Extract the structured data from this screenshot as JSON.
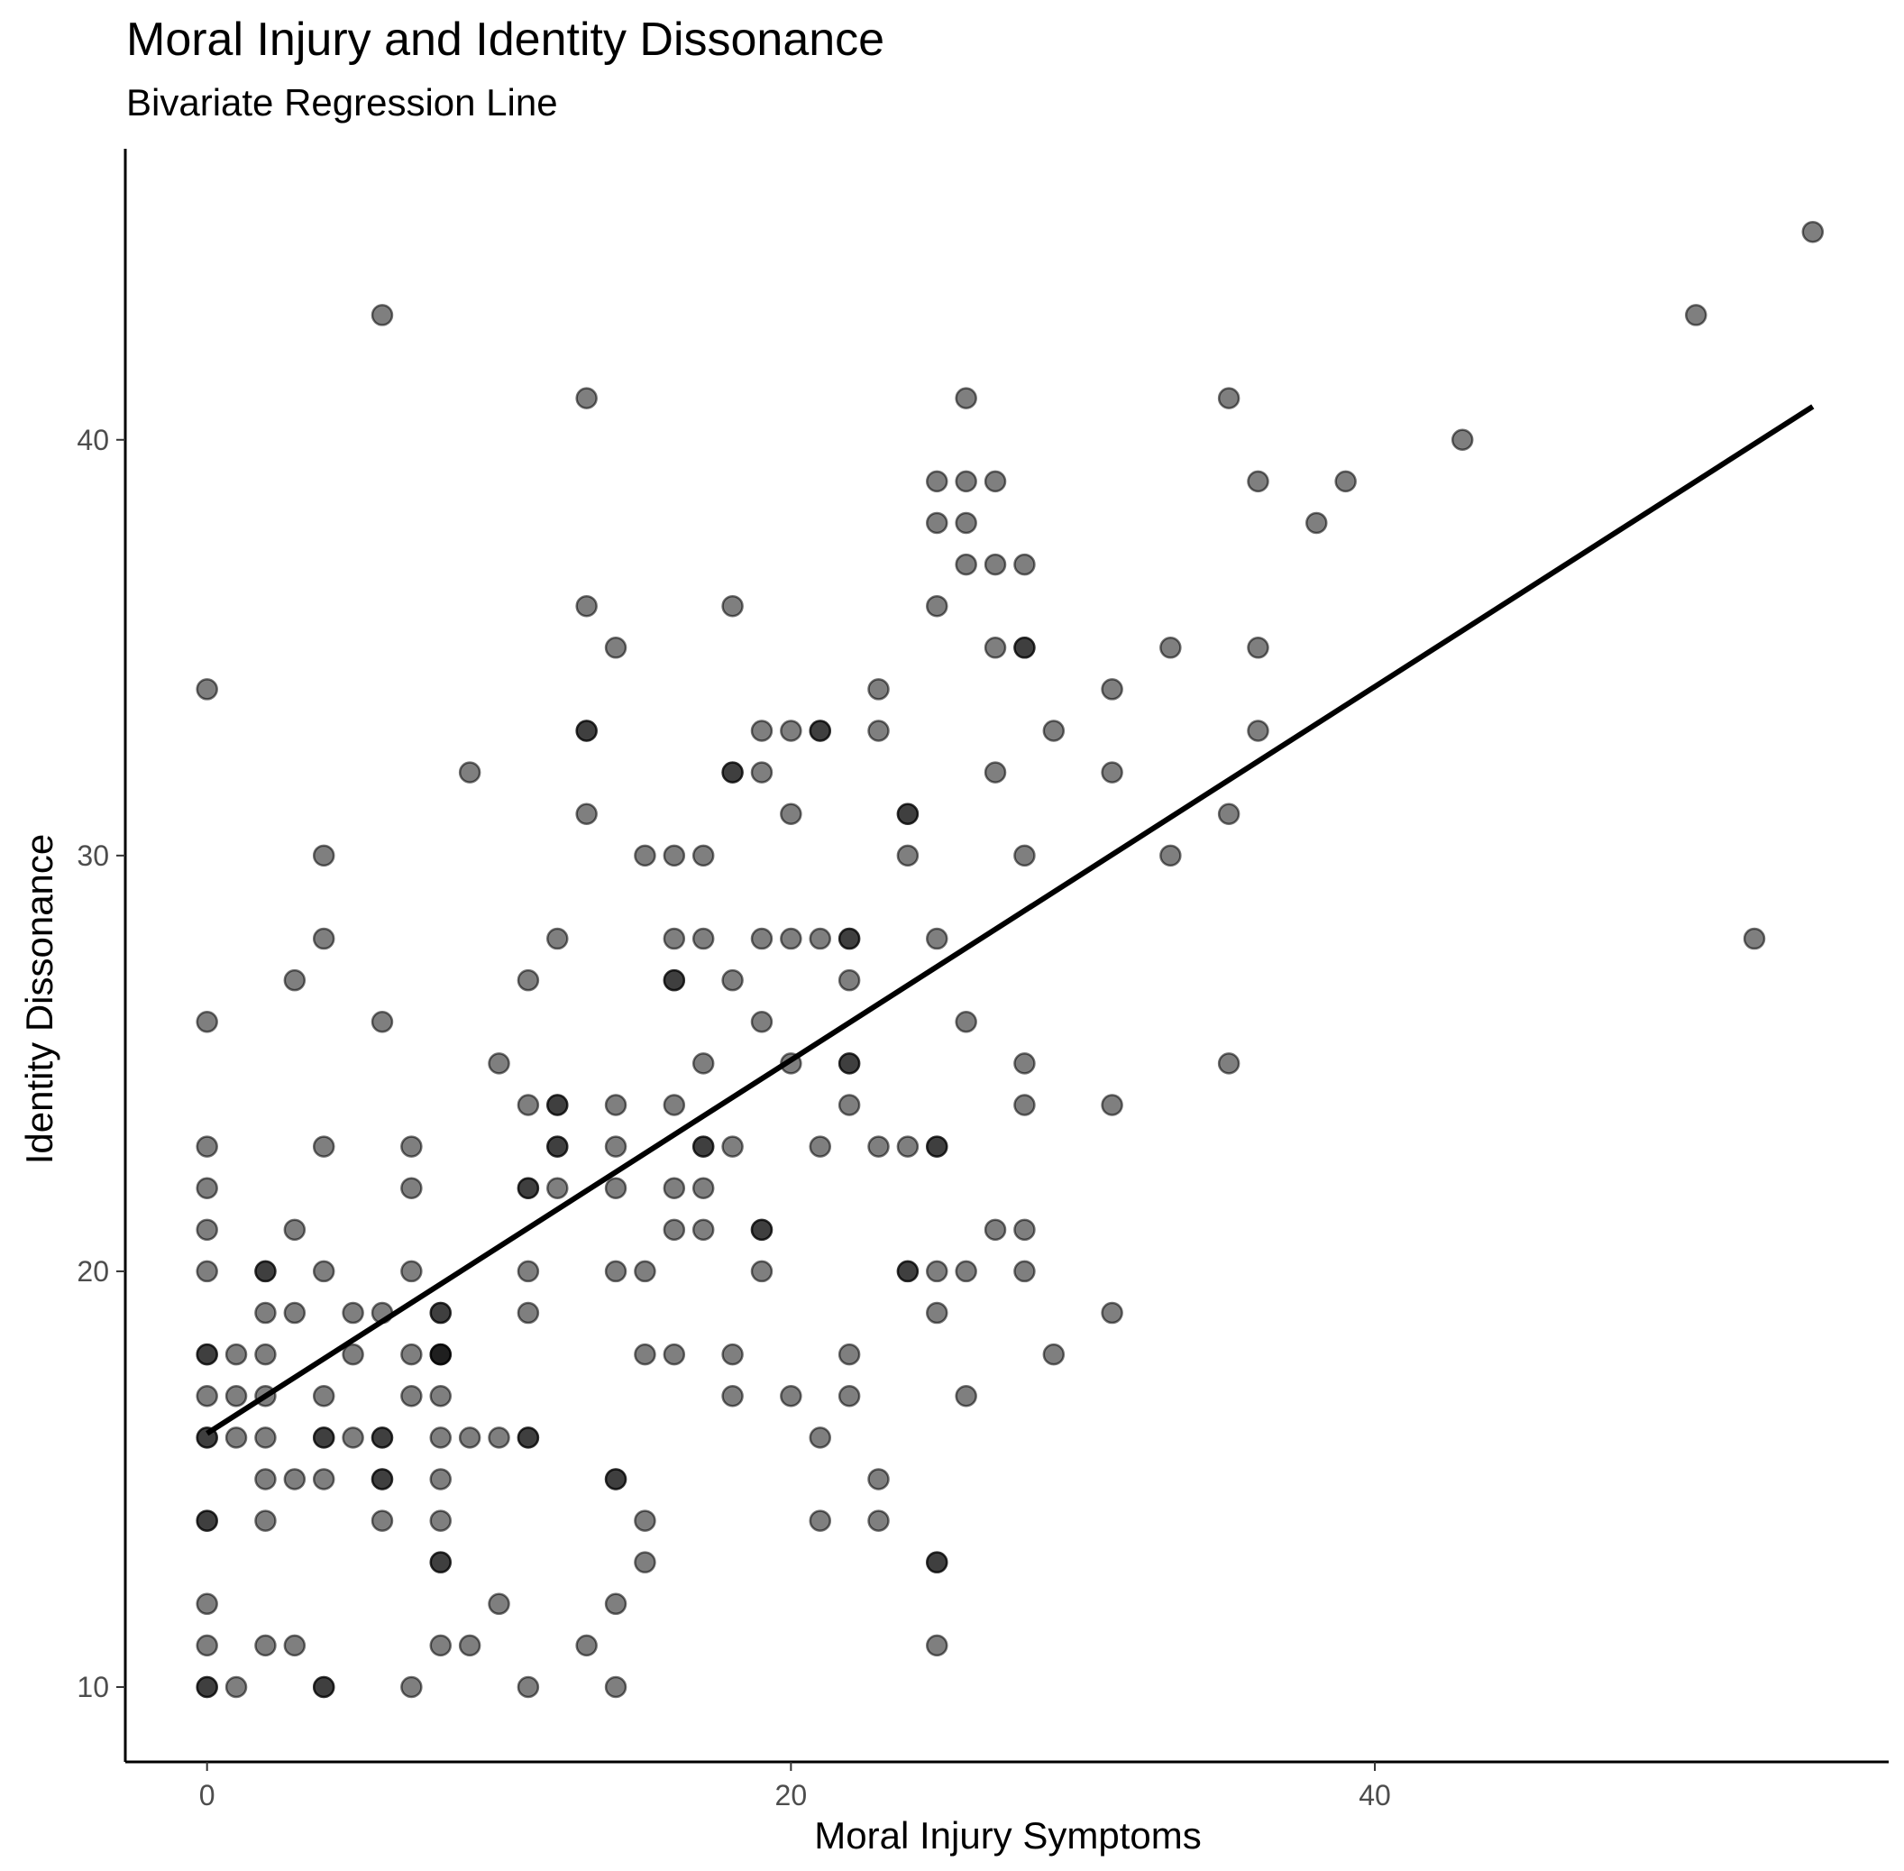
{
  "chart_data": {
    "type": "scatter",
    "title": "Moral Injury and Identity Dissonance",
    "subtitle": "Bivariate Regression Line",
    "xlabel": "Moral Injury Symptoms",
    "ylabel": "Identity Dissonance",
    "xlim": [
      -2.8,
      57.6
    ],
    "ylim": [
      8.2,
      47.0
    ],
    "xticks": [
      0,
      20,
      40
    ],
    "yticks": [
      10,
      20,
      30,
      40
    ],
    "grid": false,
    "point_color": "#000000",
    "point_opacity": 0.5,
    "line_color": "#000000",
    "regression_line": {
      "x": [
        0,
        55
      ],
      "y": [
        16.1,
        40.8
      ]
    },
    "points": [
      [
        0,
        34
      ],
      [
        0,
        26
      ],
      [
        0,
        23
      ],
      [
        0,
        22
      ],
      [
        0,
        21
      ],
      [
        0,
        20
      ],
      [
        0,
        18
      ],
      [
        0,
        18
      ],
      [
        0,
        17
      ],
      [
        0,
        16
      ],
      [
        0,
        16
      ],
      [
        0,
        14
      ],
      [
        0,
        14
      ],
      [
        0,
        12
      ],
      [
        0,
        11
      ],
      [
        0,
        10
      ],
      [
        0,
        10
      ],
      [
        1,
        18
      ],
      [
        1,
        17
      ],
      [
        1,
        16
      ],
      [
        1,
        10
      ],
      [
        2,
        20
      ],
      [
        2,
        20
      ],
      [
        2,
        19
      ],
      [
        2,
        18
      ],
      [
        2,
        17
      ],
      [
        2,
        16
      ],
      [
        2,
        15
      ],
      [
        2,
        14
      ],
      [
        2,
        11
      ],
      [
        3,
        27
      ],
      [
        3,
        21
      ],
      [
        3,
        19
      ],
      [
        3,
        15
      ],
      [
        3,
        11
      ],
      [
        4,
        30
      ],
      [
        4,
        28
      ],
      [
        4,
        23
      ],
      [
        4,
        20
      ],
      [
        4,
        17
      ],
      [
        4,
        16
      ],
      [
        4,
        16
      ],
      [
        4,
        15
      ],
      [
        4,
        10
      ],
      [
        4,
        10
      ],
      [
        5,
        19
      ],
      [
        5,
        18
      ],
      [
        5,
        16
      ],
      [
        6,
        43
      ],
      [
        6,
        26
      ],
      [
        6,
        19
      ],
      [
        6,
        16
      ],
      [
        6,
        16
      ],
      [
        6,
        15
      ],
      [
        6,
        15
      ],
      [
        6,
        14
      ],
      [
        7,
        23
      ],
      [
        7,
        22
      ],
      [
        7,
        20
      ],
      [
        7,
        18
      ],
      [
        7,
        17
      ],
      [
        7,
        10
      ],
      [
        8,
        19
      ],
      [
        8,
        19
      ],
      [
        8,
        18
      ],
      [
        8,
        18
      ],
      [
        8,
        18
      ],
      [
        8,
        17
      ],
      [
        8,
        16
      ],
      [
        8,
        15
      ],
      [
        8,
        14
      ],
      [
        8,
        13
      ],
      [
        8,
        13
      ],
      [
        8,
        11
      ],
      [
        9,
        32
      ],
      [
        9,
        16
      ],
      [
        9,
        11
      ],
      [
        10,
        25
      ],
      [
        10,
        16
      ],
      [
        10,
        12
      ],
      [
        11,
        27
      ],
      [
        11,
        24
      ],
      [
        11,
        22
      ],
      [
        11,
        22
      ],
      [
        11,
        20
      ],
      [
        11,
        19
      ],
      [
        11,
        16
      ],
      [
        11,
        16
      ],
      [
        11,
        10
      ],
      [
        12,
        28
      ],
      [
        12,
        24
      ],
      [
        12,
        24
      ],
      [
        12,
        23
      ],
      [
        12,
        23
      ],
      [
        12,
        22
      ],
      [
        13,
        41
      ],
      [
        13,
        36
      ],
      [
        13,
        33
      ],
      [
        13,
        33
      ],
      [
        13,
        31
      ],
      [
        13,
        11
      ],
      [
        14,
        35
      ],
      [
        14,
        24
      ],
      [
        14,
        23
      ],
      [
        14,
        22
      ],
      [
        14,
        20
      ],
      [
        14,
        15
      ],
      [
        14,
        15
      ],
      [
        14,
        12
      ],
      [
        14,
        10
      ],
      [
        15,
        30
      ],
      [
        15,
        20
      ],
      [
        15,
        18
      ],
      [
        15,
        14
      ],
      [
        15,
        13
      ],
      [
        16,
        30
      ],
      [
        16,
        28
      ],
      [
        16,
        27
      ],
      [
        16,
        27
      ],
      [
        16,
        24
      ],
      [
        16,
        22
      ],
      [
        16,
        21
      ],
      [
        16,
        18
      ],
      [
        17,
        30
      ],
      [
        17,
        28
      ],
      [
        17,
        25
      ],
      [
        17,
        23
      ],
      [
        17,
        23
      ],
      [
        17,
        22
      ],
      [
        17,
        21
      ],
      [
        18,
        36
      ],
      [
        18,
        32
      ],
      [
        18,
        32
      ],
      [
        18,
        27
      ],
      [
        18,
        23
      ],
      [
        18,
        18
      ],
      [
        18,
        17
      ],
      [
        19,
        33
      ],
      [
        19,
        32
      ],
      [
        19,
        28
      ],
      [
        19,
        26
      ],
      [
        19,
        21
      ],
      [
        19,
        21
      ],
      [
        19,
        20
      ],
      [
        20,
        33
      ],
      [
        20,
        31
      ],
      [
        20,
        28
      ],
      [
        20,
        25
      ],
      [
        20,
        17
      ],
      [
        21,
        33
      ],
      [
        21,
        33
      ],
      [
        21,
        28
      ],
      [
        21,
        23
      ],
      [
        21,
        16
      ],
      [
        21,
        14
      ],
      [
        22,
        28
      ],
      [
        22,
        28
      ],
      [
        22,
        27
      ],
      [
        22,
        25
      ],
      [
        22,
        25
      ],
      [
        22,
        24
      ],
      [
        22,
        18
      ],
      [
        22,
        17
      ],
      [
        23,
        34
      ],
      [
        23,
        33
      ],
      [
        23,
        23
      ],
      [
        23,
        15
      ],
      [
        23,
        14
      ],
      [
        24,
        31
      ],
      [
        24,
        31
      ],
      [
        24,
        30
      ],
      [
        24,
        23
      ],
      [
        24,
        20
      ],
      [
        24,
        20
      ],
      [
        25,
        39
      ],
      [
        25,
        38
      ],
      [
        25,
        36
      ],
      [
        25,
        28
      ],
      [
        25,
        23
      ],
      [
        25,
        23
      ],
      [
        25,
        20
      ],
      [
        25,
        19
      ],
      [
        25,
        13
      ],
      [
        25,
        13
      ],
      [
        25,
        11
      ],
      [
        26,
        41
      ],
      [
        26,
        39
      ],
      [
        26,
        38
      ],
      [
        26,
        37
      ],
      [
        26,
        26
      ],
      [
        26,
        20
      ],
      [
        26,
        17
      ],
      [
        27,
        39
      ],
      [
        27,
        37
      ],
      [
        27,
        35
      ],
      [
        27,
        32
      ],
      [
        27,
        21
      ],
      [
        28,
        37
      ],
      [
        28,
        35
      ],
      [
        28,
        35
      ],
      [
        28,
        30
      ],
      [
        28,
        25
      ],
      [
        28,
        24
      ],
      [
        28,
        21
      ],
      [
        28,
        20
      ],
      [
        29,
        33
      ],
      [
        29,
        18
      ],
      [
        31,
        34
      ],
      [
        31,
        32
      ],
      [
        31,
        24
      ],
      [
        31,
        19
      ],
      [
        33,
        35
      ],
      [
        33,
        30
      ],
      [
        35,
        41
      ],
      [
        35,
        31
      ],
      [
        35,
        25
      ],
      [
        36,
        39
      ],
      [
        36,
        35
      ],
      [
        36,
        33
      ],
      [
        38,
        38
      ],
      [
        39,
        39
      ],
      [
        43,
        40
      ],
      [
        51,
        43
      ],
      [
        53,
        28
      ],
      [
        55,
        45
      ]
    ]
  }
}
